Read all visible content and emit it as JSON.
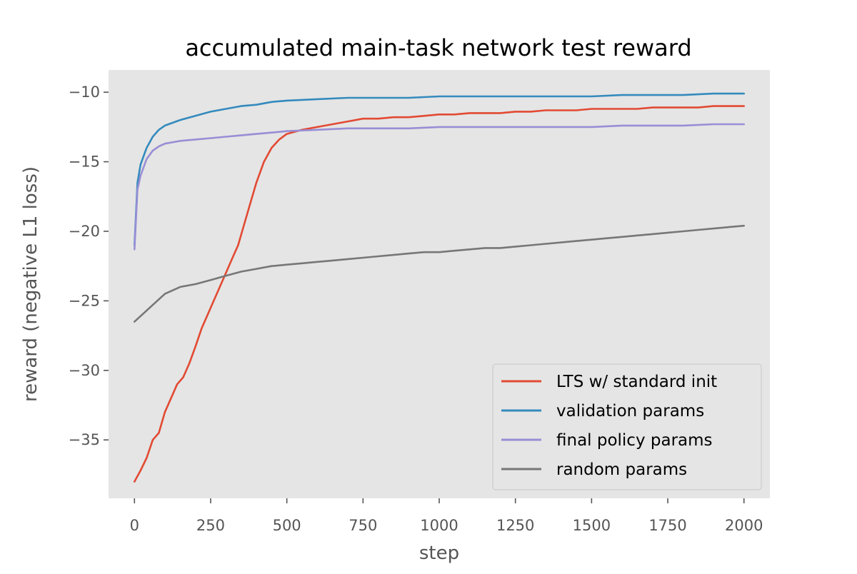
{
  "chart_data": {
    "type": "line",
    "title": "accumulated main-task network test reward",
    "xlabel": "step",
    "ylabel": "reward (negative L1 loss)",
    "xlim": [
      -85,
      2085
    ],
    "ylim": [
      -39.2,
      -8.4
    ],
    "x_ticks": [
      0,
      250,
      500,
      750,
      1000,
      1250,
      1500,
      1750,
      2000
    ],
    "x_tick_labels": [
      "0",
      "250",
      "500",
      "750",
      "1000",
      "1250",
      "1500",
      "1750",
      "2000"
    ],
    "y_ticks": [
      -10,
      -15,
      -20,
      -25,
      -30,
      -35
    ],
    "y_tick_labels": [
      "−10",
      "−15",
      "−20",
      "−25",
      "−30",
      "−35"
    ],
    "grid": false,
    "legend_position": "bottom-right",
    "series": [
      {
        "name": "LTS w/ standard init",
        "color": "#E24A33",
        "x": [
          0,
          20,
          40,
          60,
          80,
          100,
          120,
          140,
          160,
          180,
          200,
          220,
          240,
          260,
          280,
          300,
          320,
          340,
          360,
          380,
          400,
          425,
          450,
          475,
          500,
          550,
          600,
          650,
          700,
          750,
          800,
          850,
          900,
          950,
          1000,
          1050,
          1100,
          1150,
          1200,
          1250,
          1300,
          1350,
          1400,
          1450,
          1500,
          1550,
          1600,
          1650,
          1700,
          1750,
          1800,
          1850,
          1900,
          1950,
          2000
        ],
        "y": [
          -38.0,
          -37.2,
          -36.3,
          -35.0,
          -34.5,
          -33.0,
          -32.0,
          -31.0,
          -30.5,
          -29.5,
          -28.3,
          -27.0,
          -26.0,
          -25.0,
          -24.0,
          -23.0,
          -22.0,
          -21.0,
          -19.5,
          -18.0,
          -16.5,
          -15.0,
          -14.0,
          -13.4,
          -13.0,
          -12.7,
          -12.5,
          -12.3,
          -12.1,
          -11.9,
          -11.9,
          -11.8,
          -11.8,
          -11.7,
          -11.6,
          -11.6,
          -11.5,
          -11.5,
          -11.5,
          -11.4,
          -11.4,
          -11.3,
          -11.3,
          -11.3,
          -11.2,
          -11.2,
          -11.2,
          -11.2,
          -11.1,
          -11.1,
          -11.1,
          -11.1,
          -11.0,
          -11.0,
          -11.0
        ]
      },
      {
        "name": "validation params",
        "color": "#348ABD",
        "x": [
          0,
          10,
          20,
          40,
          60,
          80,
          100,
          150,
          200,
          250,
          300,
          350,
          400,
          450,
          500,
          600,
          700,
          800,
          900,
          1000,
          1100,
          1200,
          1300,
          1400,
          1500,
          1600,
          1700,
          1800,
          1900,
          2000
        ],
        "y": [
          -21.0,
          -16.5,
          -15.2,
          -14.0,
          -13.2,
          -12.7,
          -12.4,
          -12.0,
          -11.7,
          -11.4,
          -11.2,
          -11.0,
          -10.9,
          -10.7,
          -10.6,
          -10.5,
          -10.4,
          -10.4,
          -10.4,
          -10.3,
          -10.3,
          -10.3,
          -10.3,
          -10.3,
          -10.3,
          -10.2,
          -10.2,
          -10.2,
          -10.1,
          -10.1
        ]
      },
      {
        "name": "final policy params",
        "color": "#988ED5",
        "x": [
          0,
          10,
          20,
          40,
          60,
          80,
          100,
          150,
          200,
          250,
          300,
          350,
          400,
          450,
          500,
          600,
          700,
          800,
          900,
          1000,
          1100,
          1200,
          1300,
          1400,
          1500,
          1600,
          1700,
          1800,
          1900,
          2000
        ],
        "y": [
          -21.3,
          -17.0,
          -16.0,
          -14.8,
          -14.2,
          -13.9,
          -13.7,
          -13.5,
          -13.4,
          -13.3,
          -13.2,
          -13.1,
          -13.0,
          -12.9,
          -12.8,
          -12.7,
          -12.6,
          -12.6,
          -12.6,
          -12.5,
          -12.5,
          -12.5,
          -12.5,
          -12.5,
          -12.5,
          -12.4,
          -12.4,
          -12.4,
          -12.3,
          -12.3
        ]
      },
      {
        "name": "random params",
        "color": "#777777",
        "x": [
          0,
          50,
          100,
          150,
          200,
          250,
          300,
          350,
          400,
          450,
          500,
          550,
          600,
          650,
          700,
          750,
          800,
          850,
          900,
          950,
          1000,
          1050,
          1100,
          1150,
          1200,
          1250,
          1300,
          1350,
          1400,
          1450,
          1500,
          1550,
          1600,
          1650,
          1700,
          1750,
          1800,
          1850,
          1900,
          1950,
          2000
        ],
        "y": [
          -26.5,
          -25.5,
          -24.5,
          -24.0,
          -23.8,
          -23.5,
          -23.2,
          -22.9,
          -22.7,
          -22.5,
          -22.4,
          -22.3,
          -22.2,
          -22.1,
          -22.0,
          -21.9,
          -21.8,
          -21.7,
          -21.6,
          -21.5,
          -21.5,
          -21.4,
          -21.3,
          -21.2,
          -21.2,
          -21.1,
          -21.0,
          -20.9,
          -20.8,
          -20.7,
          -20.6,
          -20.5,
          -20.4,
          -20.3,
          -20.2,
          -20.1,
          -20.0,
          -19.9,
          -19.8,
          -19.7,
          -19.6
        ]
      }
    ]
  }
}
